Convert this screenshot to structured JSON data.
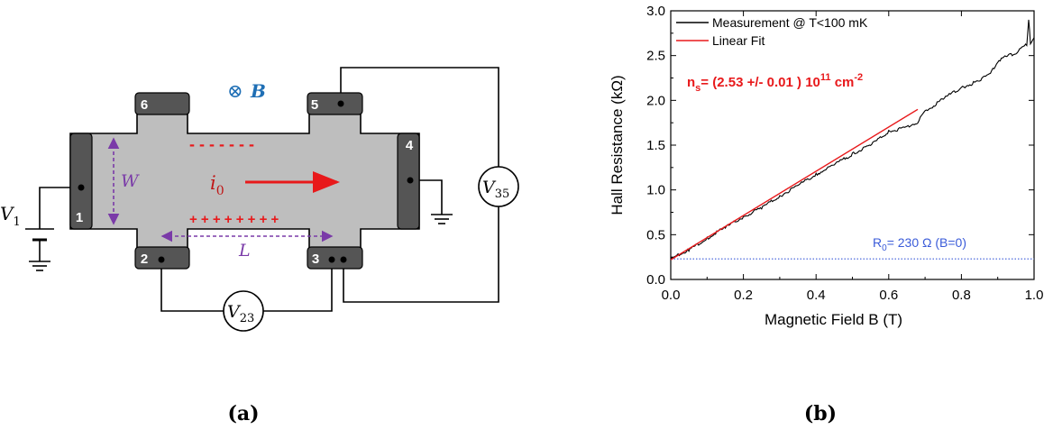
{
  "panel_a": {
    "caption": "(a)",
    "contacts": [
      "1",
      "2",
      "3",
      "4",
      "5",
      "6"
    ],
    "field_symbol": "⊗",
    "field_label": "B",
    "voltmeter_23": {
      "sym": "V",
      "sub": "23"
    },
    "voltmeter_35": {
      "sym": "V",
      "sub": "35"
    },
    "source": {
      "sym": "V",
      "sub": "1"
    },
    "current": {
      "sym": "i",
      "sub": "0"
    },
    "width_label": "W",
    "length_label": "L",
    "neg_charges": "- - - - - - -",
    "pos_charges": "+ + + + + + + +",
    "colors": {
      "device": "#bebebe",
      "contact": "#555555",
      "charge": "#e8191b",
      "dim": "#7a3aa8",
      "field": "#1f6fb5"
    }
  },
  "panel_b": {
    "caption": "(b)",
    "annotation_ns": {
      "prefix": "n",
      "sub": "s",
      "mid": "= (2.53 +/- 0.01 ) 10",
      "sup1": "11",
      "unit": " cm",
      "sup2": "-2"
    },
    "annotation_r0": {
      "prefix": "R",
      "sub": "0",
      "rest": "= 230 Ω  (B=0)"
    }
  },
  "chart_data": {
    "type": "line",
    "title": "",
    "xlabel": "Magnetic Field B  (T)",
    "ylabel": "Hall Resistance  (kΩ)",
    "xlim": [
      0.0,
      1.0
    ],
    "ylim": [
      0.0,
      3.0
    ],
    "xticks": [
      "0.0",
      "0.2",
      "0.4",
      "0.6",
      "0.8",
      "1.0"
    ],
    "yticks": [
      "0.0",
      "0.5",
      "1.0",
      "1.5",
      "2.0",
      "2.5",
      "3.0"
    ],
    "grid": false,
    "legend_position": "top-left",
    "series": [
      {
        "name": "Measurement @ T<100 mK",
        "color": "#000000",
        "x": [
          0.0,
          0.02,
          0.05,
          0.1,
          0.15,
          0.2,
          0.25,
          0.3,
          0.35,
          0.4,
          0.45,
          0.5,
          0.55,
          0.6,
          0.62,
          0.65,
          0.68,
          0.7,
          0.75,
          0.8,
          0.85,
          0.88,
          0.9,
          0.93,
          0.95,
          0.97,
          0.98,
          0.985,
          0.99,
          1.0
        ],
        "y": [
          0.22,
          0.27,
          0.33,
          0.46,
          0.58,
          0.7,
          0.8,
          0.93,
          1.05,
          1.17,
          1.28,
          1.4,
          1.5,
          1.65,
          1.67,
          1.7,
          1.76,
          1.87,
          2.02,
          2.14,
          2.22,
          2.3,
          2.44,
          2.5,
          2.53,
          2.6,
          2.62,
          2.9,
          2.64,
          2.7
        ]
      },
      {
        "name": "Linear Fit",
        "color": "#e8191b",
        "x": [
          0.0,
          0.68
        ],
        "y": [
          0.22,
          1.9
        ]
      },
      {
        "name": "",
        "color": "#3a5bd9",
        "dotted": true,
        "x": [
          0.0,
          1.0
        ],
        "y": [
          0.23,
          0.23
        ]
      }
    ]
  }
}
